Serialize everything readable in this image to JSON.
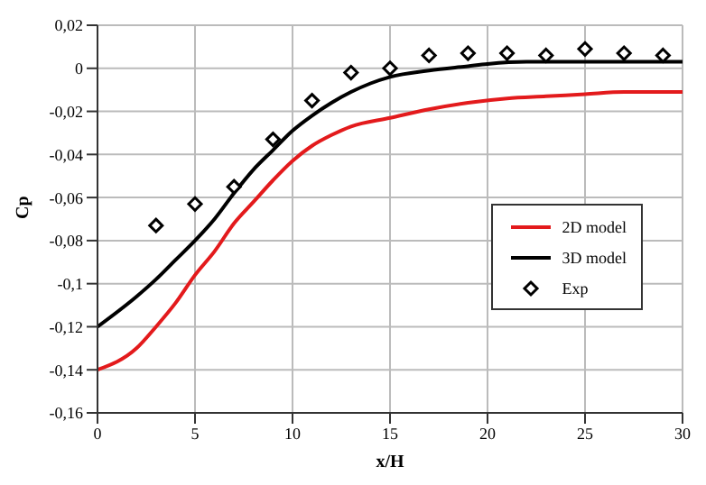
{
  "chart_data": {
    "type": "line",
    "xlabel": "x/H",
    "ylabel": "Cp",
    "xlim": [
      0,
      30
    ],
    "xticks": [
      0,
      5,
      10,
      15,
      20,
      25,
      30
    ],
    "ylim": [
      -0.16,
      0.02
    ],
    "yticks": [
      {
        "value": -0.16,
        "label": "-0,16"
      },
      {
        "value": -0.14,
        "label": "-0,14"
      },
      {
        "value": -0.12,
        "label": "-0,12"
      },
      {
        "value": -0.1,
        "label": "-0,1"
      },
      {
        "value": -0.08,
        "label": "-0,08"
      },
      {
        "value": -0.06,
        "label": "-0,06"
      },
      {
        "value": -0.04,
        "label": "-0,04"
      },
      {
        "value": -0.02,
        "label": "-0,02"
      },
      {
        "value": 0,
        "label": "0"
      },
      {
        "value": 0.02,
        "label": "0,02"
      }
    ],
    "grid": true,
    "legend": "right",
    "series": [
      {
        "name": "2D model",
        "color": "#e31a1c",
        "x": [
          0,
          2,
          3,
          4,
          5,
          6,
          7,
          8,
          9,
          10,
          11,
          12,
          13,
          15,
          17,
          19,
          21,
          23,
          25,
          27,
          30
        ],
        "values": [
          -0.14,
          -0.13,
          -0.12,
          -0.109,
          -0.096,
          -0.085,
          -0.072,
          -0.062,
          -0.052,
          -0.043,
          -0.036,
          -0.031,
          -0.027,
          -0.023,
          -0.019,
          -0.016,
          -0.014,
          -0.013,
          -0.012,
          -0.011,
          -0.011
        ]
      },
      {
        "name": "3D model",
        "color": "#000000",
        "x": [
          0,
          2,
          3,
          4,
          5,
          6,
          7,
          8,
          9,
          10,
          11,
          12,
          13,
          14,
          15,
          17,
          19,
          20,
          22,
          25,
          30
        ],
        "values": [
          -0.12,
          -0.106,
          -0.098,
          -0.089,
          -0.08,
          -0.07,
          -0.058,
          -0.047,
          -0.038,
          -0.029,
          -0.022,
          -0.016,
          -0.011,
          -0.007,
          -0.004,
          -0.001,
          0.001,
          0.002,
          0.003,
          0.003,
          0.003
        ]
      },
      {
        "name": "Exp",
        "type": "scatter",
        "marker": "diamond",
        "color": "#000000",
        "x": [
          3,
          5,
          7,
          9,
          11,
          13,
          15,
          17,
          19,
          21,
          23,
          25,
          27,
          29
        ],
        "values": [
          -0.073,
          -0.063,
          -0.055,
          -0.033,
          -0.015,
          -0.002,
          0,
          0.006,
          0.007,
          0.007,
          0.006,
          0.009,
          0.007,
          0.006
        ]
      }
    ]
  }
}
